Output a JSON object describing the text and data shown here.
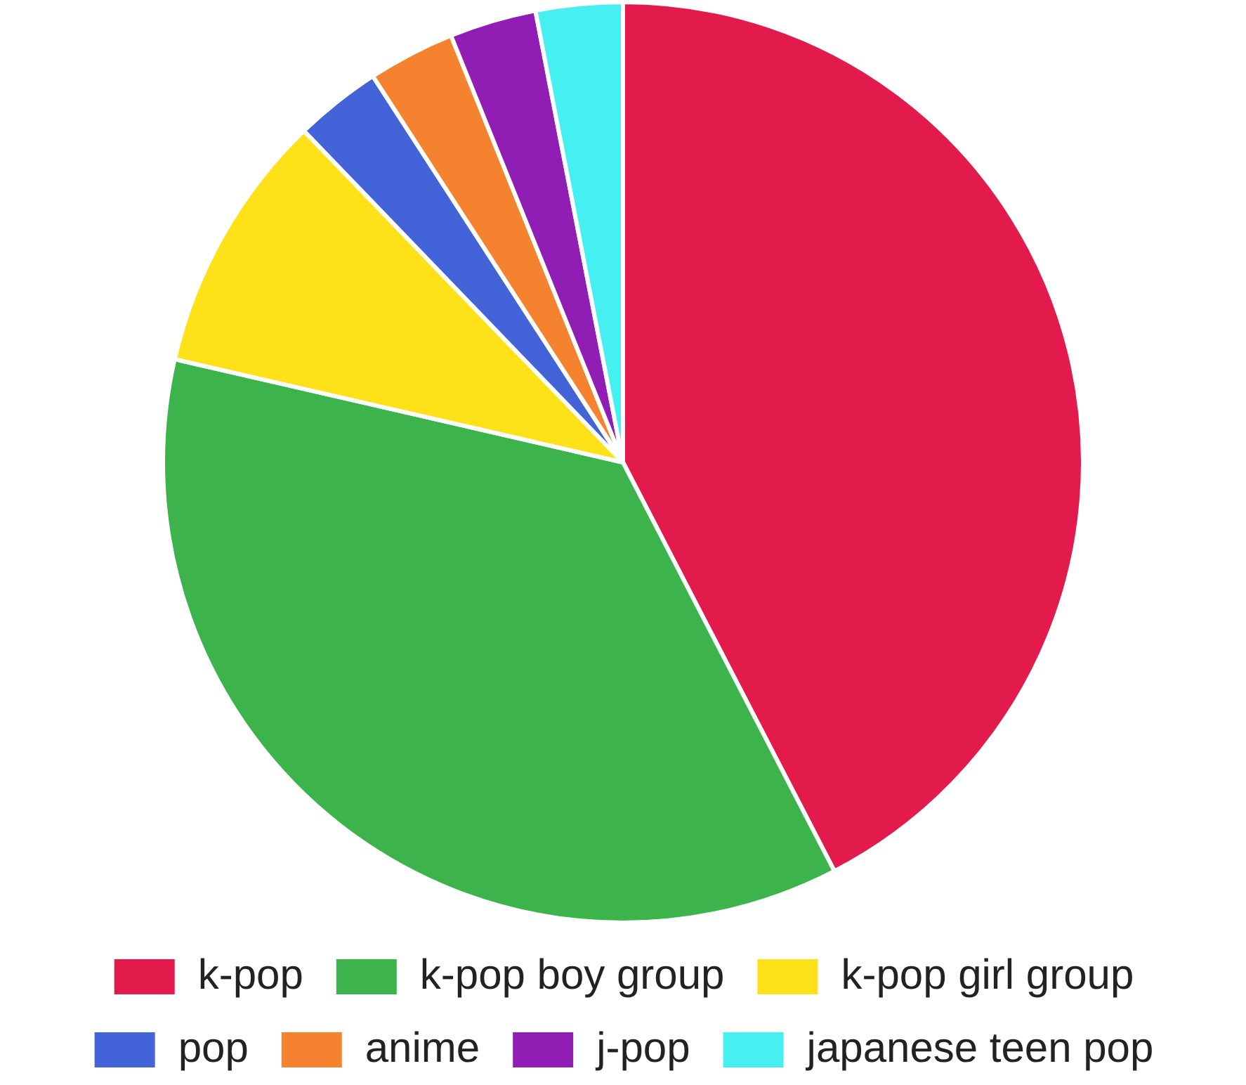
{
  "chart_data": {
    "type": "pie",
    "categories": [
      "k-pop",
      "k-pop boy group",
      "k-pop girl group",
      "pop",
      "anime",
      "j-pop",
      "japanese teen pop"
    ],
    "values": [
      42.4,
      36.2,
      9.2,
      3.05,
      3.05,
      3.05,
      3.05
    ],
    "colors": [
      "#e31b4c",
      "#3cb44b",
      "#ffe11a",
      "#4363d8",
      "#f5822f",
      "#911eb4",
      "#46f0f0"
    ],
    "legend": "bottom"
  }
}
